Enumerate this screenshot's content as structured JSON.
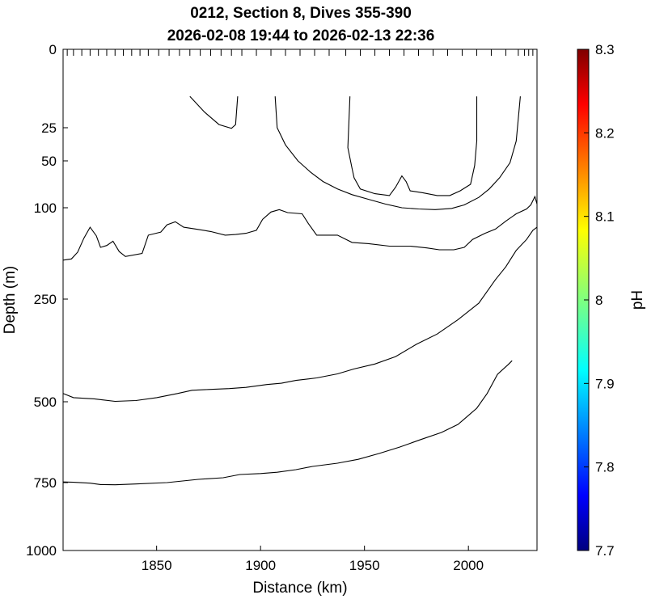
{
  "chart_data": {
    "type": "contour",
    "title": "0212, Section 8, Dives 355-390",
    "subtitle": "2026-02-08 19:44 to 2026-02-13 22:36",
    "xlabel": "Distance (km)",
    "ylabel": "Depth (m)",
    "xlim": [
      1805,
      2033
    ],
    "x_ticks": [
      1850,
      1900,
      1950,
      2000
    ],
    "y_ticks": [
      0,
      25,
      50,
      100,
      250,
      500,
      750,
      1000
    ],
    "y_scale": "nonlinear (stretched near surface)",
    "y_reversed": true,
    "dive_marks_km": [
      1807,
      1810,
      1814,
      1818,
      1822,
      1826,
      1830,
      1834,
      1838,
      1842,
      1846,
      1851,
      1856,
      1861,
      1866,
      1871,
      1876,
      1881,
      1886,
      1891,
      1898,
      1905,
      1912,
      1919,
      1926,
      1933,
      1941,
      1948,
      1955,
      1962,
      1969,
      1976,
      1983,
      1990,
      1997,
      2004,
      2011,
      2018,
      2024,
      2027,
      2029,
      2031
    ],
    "colorbar": {
      "label": "pH",
      "min": 7.7,
      "max": 8.3,
      "ticks": [
        "7.7",
        "7.8",
        "7.9",
        "8",
        "8.1",
        "8.2",
        "8.3"
      ],
      "colormap": "jet"
    },
    "contours": [
      {
        "points": [
          [
            1866,
            15
          ],
          [
            1873,
            20
          ],
          [
            1880,
            24
          ],
          [
            1886,
            25.5
          ],
          [
            1888,
            24
          ],
          [
            1889,
            15
          ]
        ]
      },
      {
        "points": [
          [
            1907,
            15
          ],
          [
            1908,
            25
          ],
          [
            1912,
            38
          ],
          [
            1918,
            50
          ],
          [
            1924,
            62
          ],
          [
            1930,
            72
          ],
          [
            1937,
            80
          ],
          [
            1944,
            86
          ],
          [
            1952,
            91
          ],
          [
            1960,
            96
          ],
          [
            1968,
            100
          ],
          [
            1976,
            102
          ],
          [
            1984,
            103
          ],
          [
            1992,
            101
          ],
          [
            1998,
            97
          ],
          [
            2005,
            89
          ],
          [
            2010,
            80
          ],
          [
            2015,
            68
          ],
          [
            2020,
            52
          ],
          [
            2023,
            35
          ],
          [
            2025,
            15
          ]
        ]
      },
      {
        "points": [
          [
            1943,
            15
          ],
          [
            1942,
            40
          ],
          [
            1944,
            58
          ],
          [
            1945,
            68
          ],
          [
            1948,
            80
          ],
          [
            1955,
            85
          ],
          [
            1962,
            87
          ],
          [
            1965,
            78
          ],
          [
            1968,
            66
          ],
          [
            1970,
            72
          ],
          [
            1972,
            82
          ],
          [
            1978,
            84
          ],
          [
            1985,
            87
          ],
          [
            1991,
            87
          ],
          [
            1996,
            82
          ],
          [
            2001,
            75
          ],
          [
            2003,
            55
          ],
          [
            2004,
            35
          ],
          [
            2004,
            15
          ]
        ]
      },
      {
        "points": [
          [
            1805,
            186
          ],
          [
            1809,
            184
          ],
          [
            1812,
            173
          ],
          [
            1815,
            150
          ],
          [
            1818,
            132
          ],
          [
            1821,
            146
          ],
          [
            1823,
            165
          ],
          [
            1826,
            162
          ],
          [
            1829,
            155
          ],
          [
            1832,
            172
          ],
          [
            1835,
            180
          ],
          [
            1843,
            175
          ],
          [
            1846,
            145
          ],
          [
            1852,
            140
          ],
          [
            1855,
            128
          ],
          [
            1859,
            123
          ],
          [
            1863,
            132
          ],
          [
            1869,
            135
          ],
          [
            1876,
            139
          ],
          [
            1883,
            145
          ],
          [
            1888,
            144
          ],
          [
            1893,
            142
          ],
          [
            1898,
            137
          ],
          [
            1901,
            119
          ],
          [
            1905,
            107
          ],
          [
            1909,
            103
          ],
          [
            1913,
            108
          ],
          [
            1920,
            110
          ],
          [
            1923,
            126
          ],
          [
            1927,
            145
          ],
          [
            1937,
            145
          ],
          [
            1944,
            157
          ],
          [
            1952,
            159
          ],
          [
            1962,
            163
          ],
          [
            1972,
            163
          ],
          [
            1980,
            166
          ],
          [
            1986,
            169
          ],
          [
            1993,
            169
          ],
          [
            1998,
            165
          ],
          [
            2002,
            152
          ],
          [
            2008,
            142
          ],
          [
            2013,
            135
          ],
          [
            2018,
            122
          ],
          [
            2023,
            110
          ],
          [
            2028,
            102
          ],
          [
            2030,
            97
          ],
          [
            2032,
            88
          ],
          [
            2033,
            96
          ]
        ]
      },
      {
        "points": [
          [
            1805,
            480
          ],
          [
            1810,
            490
          ],
          [
            1820,
            493
          ],
          [
            1830,
            499
          ],
          [
            1840,
            497
          ],
          [
            1850,
            490
          ],
          [
            1860,
            480
          ],
          [
            1867,
            472
          ],
          [
            1875,
            470
          ],
          [
            1885,
            468
          ],
          [
            1893,
            465
          ],
          [
            1903,
            458
          ],
          [
            1910,
            455
          ],
          [
            1917,
            448
          ],
          [
            1927,
            442
          ],
          [
            1937,
            432
          ],
          [
            1945,
            420
          ],
          [
            1955,
            408
          ],
          [
            1965,
            390
          ],
          [
            1975,
            360
          ],
          [
            1985,
            335
          ],
          [
            1995,
            300
          ],
          [
            2005,
            260
          ],
          [
            2013,
            218
          ],
          [
            2018,
            197
          ],
          [
            2023,
            170
          ],
          [
            2028,
            152
          ],
          [
            2031,
            137
          ],
          [
            2033,
            132
          ]
        ]
      },
      {
        "points": [
          [
            1805,
            748
          ],
          [
            1810,
            749
          ],
          [
            1818,
            752
          ],
          [
            1823,
            757
          ],
          [
            1830,
            758
          ],
          [
            1840,
            755
          ],
          [
            1855,
            750
          ],
          [
            1870,
            740
          ],
          [
            1882,
            735
          ],
          [
            1890,
            725
          ],
          [
            1900,
            722
          ],
          [
            1908,
            718
          ],
          [
            1917,
            710
          ],
          [
            1925,
            700
          ],
          [
            1937,
            690
          ],
          [
            1947,
            678
          ],
          [
            1957,
            660
          ],
          [
            1967,
            640
          ],
          [
            1977,
            617
          ],
          [
            1987,
            595
          ],
          [
            1995,
            570
          ],
          [
            1999,
            548
          ],
          [
            2004,
            520
          ],
          [
            2009,
            480
          ],
          [
            2014,
            433
          ],
          [
            2019,
            410
          ],
          [
            2021,
            400
          ]
        ]
      }
    ]
  }
}
